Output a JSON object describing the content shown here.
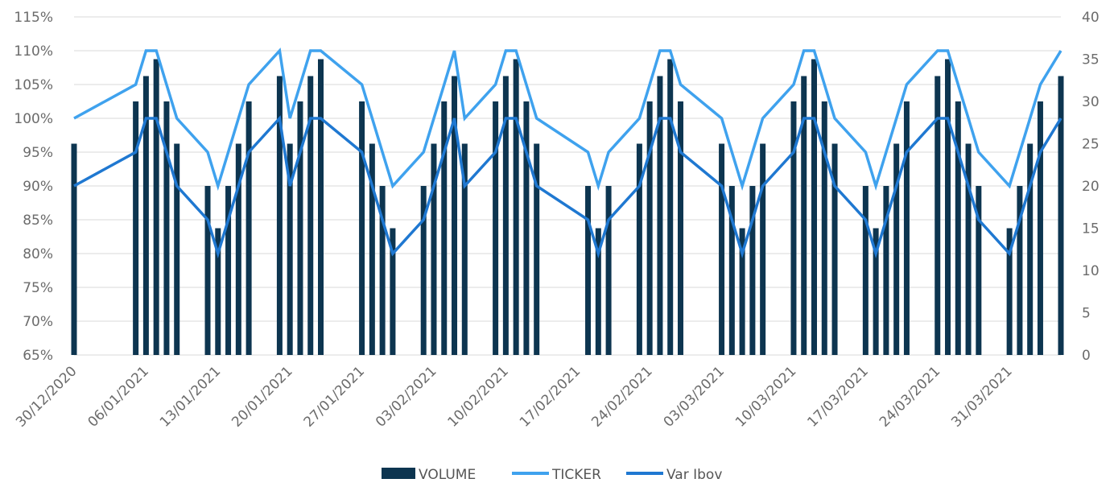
{
  "chart_data": {
    "type": "bar",
    "title": "",
    "xlabel": "",
    "ylabel": "",
    "x": [
      "30/12/2020",
      "31/12/2020",
      "01/01/2021",
      "02/01/2021",
      "03/01/2021",
      "04/01/2021",
      "05/01/2021",
      "06/01/2021",
      "07/01/2021",
      "08/01/2021",
      "09/01/2021",
      "10/01/2021",
      "11/01/2021",
      "12/01/2021",
      "13/01/2021",
      "14/01/2021",
      "15/01/2021",
      "16/01/2021",
      "17/01/2021",
      "18/01/2021",
      "19/01/2021",
      "20/01/2021",
      "21/01/2021",
      "22/01/2021",
      "23/01/2021",
      "24/01/2021",
      "25/01/2021",
      "26/01/2021",
      "27/01/2021",
      "28/01/2021",
      "29/01/2021",
      "30/01/2021",
      "31/01/2021",
      "01/02/2021",
      "02/02/2021",
      "03/02/2021",
      "04/02/2021",
      "05/02/2021",
      "06/02/2021",
      "07/02/2021",
      "08/02/2021",
      "09/02/2021",
      "10/02/2021",
      "11/02/2021",
      "12/02/2021",
      "13/02/2021",
      "14/02/2021",
      "15/02/2021",
      "16/02/2021",
      "17/02/2021",
      "18/02/2021",
      "19/02/2021",
      "20/02/2021",
      "21/02/2021",
      "22/02/2021",
      "23/02/2021",
      "24/02/2021",
      "25/02/2021",
      "26/02/2021",
      "27/02/2021",
      "28/02/2021",
      "01/03/2021",
      "02/03/2021",
      "03/03/2021",
      "04/03/2021",
      "05/03/2021",
      "06/03/2021",
      "07/03/2021",
      "08/03/2021",
      "09/03/2021",
      "10/03/2021",
      "11/03/2021",
      "12/03/2021",
      "13/03/2021",
      "14/03/2021",
      "15/03/2021",
      "16/03/2021",
      "17/03/2021",
      "18/03/2021",
      "19/03/2021",
      "20/03/2021",
      "21/03/2021",
      "22/03/2021",
      "23/03/2021",
      "24/03/2021",
      "25/03/2021",
      "26/03/2021",
      "27/03/2021",
      "28/03/2021",
      "29/03/2021",
      "30/03/2021",
      "31/03/2021",
      "01/04/2021",
      "02/04/2021",
      "03/04/2021",
      "04/04/2021",
      "05/04/2021"
    ],
    "x_tick_labels": [
      "30/12/2020",
      "06/01/2021",
      "13/01/2021",
      "20/01/2021",
      "27/01/2021",
      "03/02/2021",
      "10/02/2021",
      "17/02/2021",
      "24/02/2021",
      "03/03/2021",
      "10/03/2021",
      "17/03/2021",
      "24/03/2021",
      "31/03/2021"
    ],
    "y_left": {
      "range": [
        0.65,
        1.15
      ],
      "ticks": [
        "65%",
        "70%",
        "75%",
        "80%",
        "85%",
        "90%",
        "95%",
        "100%",
        "105%",
        "110%",
        "115%"
      ]
    },
    "y_right": {
      "range": [
        0,
        40
      ],
      "ticks": [
        "0",
        "5",
        "10",
        "15",
        "20",
        "25",
        "30",
        "35",
        "40"
      ]
    },
    "grid": true,
    "legend_position": "bottom",
    "series": [
      {
        "name": "VOLUME",
        "type": "bar",
        "axis": "right",
        "color": "#0d3550",
        "points": [
          {
            "x": "30/12/2020",
            "y": 25
          },
          {
            "x": "05/01/2021",
            "y": 30
          },
          {
            "x": "06/01/2021",
            "y": 33
          },
          {
            "x": "07/01/2021",
            "y": 35
          },
          {
            "x": "08/01/2021",
            "y": 30
          },
          {
            "x": "09/01/2021",
            "y": 25
          },
          {
            "x": "12/01/2021",
            "y": 20
          },
          {
            "x": "13/01/2021",
            "y": 15
          },
          {
            "x": "14/01/2021",
            "y": 20
          },
          {
            "x": "15/01/2021",
            "y": 25
          },
          {
            "x": "16/01/2021",
            "y": 30
          },
          {
            "x": "19/01/2021",
            "y": 33
          },
          {
            "x": "20/01/2021",
            "y": 25
          },
          {
            "x": "21/01/2021",
            "y": 30
          },
          {
            "x": "22/01/2021",
            "y": 33
          },
          {
            "x": "23/01/2021",
            "y": 35
          },
          {
            "x": "27/01/2021",
            "y": 30
          },
          {
            "x": "28/01/2021",
            "y": 25
          },
          {
            "x": "29/01/2021",
            "y": 20
          },
          {
            "x": "30/01/2021",
            "y": 15
          },
          {
            "x": "02/02/2021",
            "y": 20
          },
          {
            "x": "03/02/2021",
            "y": 25
          },
          {
            "x": "04/02/2021",
            "y": 30
          },
          {
            "x": "05/02/2021",
            "y": 33
          },
          {
            "x": "06/02/2021",
            "y": 25
          },
          {
            "x": "09/02/2021",
            "y": 30
          },
          {
            "x": "10/02/2021",
            "y": 33
          },
          {
            "x": "11/02/2021",
            "y": 35
          },
          {
            "x": "12/02/2021",
            "y": 30
          },
          {
            "x": "13/02/2021",
            "y": 25
          },
          {
            "x": "18/02/2021",
            "y": 20
          },
          {
            "x": "19/02/2021",
            "y": 15
          },
          {
            "x": "20/02/2021",
            "y": 20
          },
          {
            "x": "23/02/2021",
            "y": 25
          },
          {
            "x": "24/02/2021",
            "y": 30
          },
          {
            "x": "25/02/2021",
            "y": 33
          },
          {
            "x": "26/02/2021",
            "y": 35
          },
          {
            "x": "27/02/2021",
            "y": 30
          },
          {
            "x": "03/03/2021",
            "y": 25
          },
          {
            "x": "04/03/2021",
            "y": 20
          },
          {
            "x": "05/03/2021",
            "y": 15
          },
          {
            "x": "06/03/2021",
            "y": 20
          },
          {
            "x": "07/03/2021",
            "y": 25
          },
          {
            "x": "10/03/2021",
            "y": 30
          },
          {
            "x": "11/03/2021",
            "y": 33
          },
          {
            "x": "12/03/2021",
            "y": 35
          },
          {
            "x": "13/03/2021",
            "y": 30
          },
          {
            "x": "14/03/2021",
            "y": 25
          },
          {
            "x": "17/03/2021",
            "y": 20
          },
          {
            "x": "18/03/2021",
            "y": 15
          },
          {
            "x": "19/03/2021",
            "y": 20
          },
          {
            "x": "20/03/2021",
            "y": 25
          },
          {
            "x": "21/03/2021",
            "y": 30
          },
          {
            "x": "24/03/2021",
            "y": 33
          },
          {
            "x": "25/03/2021",
            "y": 35
          },
          {
            "x": "26/03/2021",
            "y": 30
          },
          {
            "x": "27/03/2021",
            "y": 25
          },
          {
            "x": "28/03/2021",
            "y": 20
          },
          {
            "x": "31/03/2021",
            "y": 15
          },
          {
            "x": "01/04/2021",
            "y": 20
          },
          {
            "x": "02/04/2021",
            "y": 25
          },
          {
            "x": "03/04/2021",
            "y": 30
          },
          {
            "x": "05/04/2021",
            "y": 33
          }
        ]
      },
      {
        "name": "TICKER",
        "type": "line",
        "axis": "left",
        "color": "#3fa2ee",
        "points": [
          {
            "x": "30/12/2020",
            "y": 1.0
          },
          {
            "x": "05/01/2021",
            "y": 1.05
          },
          {
            "x": "06/01/2021",
            "y": 1.1
          },
          {
            "x": "07/01/2021",
            "y": 1.1
          },
          {
            "x": "08/01/2021",
            "y": 1.05
          },
          {
            "x": "09/01/2021",
            "y": 1.0
          },
          {
            "x": "12/01/2021",
            "y": 0.95
          },
          {
            "x": "13/01/2021",
            "y": 0.9
          },
          {
            "x": "14/01/2021",
            "y": 0.95
          },
          {
            "x": "15/01/2021",
            "y": 1.0
          },
          {
            "x": "16/01/2021",
            "y": 1.05
          },
          {
            "x": "19/01/2021",
            "y": 1.1
          },
          {
            "x": "20/01/2021",
            "y": 1.0
          },
          {
            "x": "21/01/2021",
            "y": 1.05
          },
          {
            "x": "22/01/2021",
            "y": 1.1
          },
          {
            "x": "23/01/2021",
            "y": 1.1
          },
          {
            "x": "27/01/2021",
            "y": 1.05
          },
          {
            "x": "28/01/2021",
            "y": 1.0
          },
          {
            "x": "29/01/2021",
            "y": 0.95
          },
          {
            "x": "30/01/2021",
            "y": 0.9
          },
          {
            "x": "02/02/2021",
            "y": 0.95
          },
          {
            "x": "03/02/2021",
            "y": 1.0
          },
          {
            "x": "04/02/2021",
            "y": 1.05
          },
          {
            "x": "05/02/2021",
            "y": 1.1
          },
          {
            "x": "06/02/2021",
            "y": 1.0
          },
          {
            "x": "09/02/2021",
            "y": 1.05
          },
          {
            "x": "10/02/2021",
            "y": 1.1
          },
          {
            "x": "11/02/2021",
            "y": 1.1
          },
          {
            "x": "12/02/2021",
            "y": 1.05
          },
          {
            "x": "13/02/2021",
            "y": 1.0
          },
          {
            "x": "18/02/2021",
            "y": 0.95
          },
          {
            "x": "19/02/2021",
            "y": 0.9
          },
          {
            "x": "20/02/2021",
            "y": 0.95
          },
          {
            "x": "23/02/2021",
            "y": 1.0
          },
          {
            "x": "24/02/2021",
            "y": 1.05
          },
          {
            "x": "25/02/2021",
            "y": 1.1
          },
          {
            "x": "26/02/2021",
            "y": 1.1
          },
          {
            "x": "27/02/2021",
            "y": 1.05
          },
          {
            "x": "03/03/2021",
            "y": 1.0
          },
          {
            "x": "04/03/2021",
            "y": 0.95
          },
          {
            "x": "05/03/2021",
            "y": 0.9
          },
          {
            "x": "06/03/2021",
            "y": 0.95
          },
          {
            "x": "07/03/2021",
            "y": 1.0
          },
          {
            "x": "10/03/2021",
            "y": 1.05
          },
          {
            "x": "11/03/2021",
            "y": 1.1
          },
          {
            "x": "12/03/2021",
            "y": 1.1
          },
          {
            "x": "13/03/2021",
            "y": 1.05
          },
          {
            "x": "14/03/2021",
            "y": 1.0
          },
          {
            "x": "17/03/2021",
            "y": 0.95
          },
          {
            "x": "18/03/2021",
            "y": 0.9
          },
          {
            "x": "19/03/2021",
            "y": 0.95
          },
          {
            "x": "20/03/2021",
            "y": 1.0
          },
          {
            "x": "21/03/2021",
            "y": 1.05
          },
          {
            "x": "24/03/2021",
            "y": 1.1
          },
          {
            "x": "25/03/2021",
            "y": 1.1
          },
          {
            "x": "26/03/2021",
            "y": 1.05
          },
          {
            "x": "27/03/2021",
            "y": 1.0
          },
          {
            "x": "28/03/2021",
            "y": 0.95
          },
          {
            "x": "31/03/2021",
            "y": 0.9
          },
          {
            "x": "01/04/2021",
            "y": 0.95
          },
          {
            "x": "02/04/2021",
            "y": 1.0
          },
          {
            "x": "03/04/2021",
            "y": 1.05
          },
          {
            "x": "05/04/2021",
            "y": 1.1
          }
        ]
      },
      {
        "name": "Var Ibov",
        "type": "line",
        "axis": "left",
        "color": "#1f78d1",
        "points": [
          {
            "x": "30/12/2020",
            "y": 0.9
          },
          {
            "x": "05/01/2021",
            "y": 0.95
          },
          {
            "x": "06/01/2021",
            "y": 1.0
          },
          {
            "x": "07/01/2021",
            "y": 1.0
          },
          {
            "x": "08/01/2021",
            "y": 0.95
          },
          {
            "x": "09/01/2021",
            "y": 0.9
          },
          {
            "x": "12/01/2021",
            "y": 0.85
          },
          {
            "x": "13/01/2021",
            "y": 0.8
          },
          {
            "x": "14/01/2021",
            "y": 0.85
          },
          {
            "x": "15/01/2021",
            "y": 0.9
          },
          {
            "x": "16/01/2021",
            "y": 0.95
          },
          {
            "x": "19/01/2021",
            "y": 1.0
          },
          {
            "x": "20/01/2021",
            "y": 0.9
          },
          {
            "x": "21/01/2021",
            "y": 0.95
          },
          {
            "x": "22/01/2021",
            "y": 1.0
          },
          {
            "x": "23/01/2021",
            "y": 1.0
          },
          {
            "x": "27/01/2021",
            "y": 0.95
          },
          {
            "x": "28/01/2021",
            "y": 0.9
          },
          {
            "x": "29/01/2021",
            "y": 0.85
          },
          {
            "x": "30/01/2021",
            "y": 0.8
          },
          {
            "x": "02/02/2021",
            "y": 0.85
          },
          {
            "x": "03/02/2021",
            "y": 0.9
          },
          {
            "x": "04/02/2021",
            "y": 0.95
          },
          {
            "x": "05/02/2021",
            "y": 1.0
          },
          {
            "x": "06/02/2021",
            "y": 0.9
          },
          {
            "x": "09/02/2021",
            "y": 0.95
          },
          {
            "x": "10/02/2021",
            "y": 1.0
          },
          {
            "x": "11/02/2021",
            "y": 1.0
          },
          {
            "x": "12/02/2021",
            "y": 0.95
          },
          {
            "x": "13/02/2021",
            "y": 0.9
          },
          {
            "x": "18/02/2021",
            "y": 0.85
          },
          {
            "x": "19/02/2021",
            "y": 0.8
          },
          {
            "x": "20/02/2021",
            "y": 0.85
          },
          {
            "x": "23/02/2021",
            "y": 0.9
          },
          {
            "x": "24/02/2021",
            "y": 0.95
          },
          {
            "x": "25/02/2021",
            "y": 1.0
          },
          {
            "x": "26/02/2021",
            "y": 1.0
          },
          {
            "x": "27/02/2021",
            "y": 0.95
          },
          {
            "x": "03/03/2021",
            "y": 0.9
          },
          {
            "x": "04/03/2021",
            "y": 0.85
          },
          {
            "x": "05/03/2021",
            "y": 0.8
          },
          {
            "x": "06/03/2021",
            "y": 0.85
          },
          {
            "x": "07/03/2021",
            "y": 0.9
          },
          {
            "x": "10/03/2021",
            "y": 0.95
          },
          {
            "x": "11/03/2021",
            "y": 1.0
          },
          {
            "x": "12/03/2021",
            "y": 1.0
          },
          {
            "x": "13/03/2021",
            "y": 0.95
          },
          {
            "x": "14/03/2021",
            "y": 0.9
          },
          {
            "x": "17/03/2021",
            "y": 0.85
          },
          {
            "x": "18/03/2021",
            "y": 0.8
          },
          {
            "x": "19/03/2021",
            "y": 0.85
          },
          {
            "x": "20/03/2021",
            "y": 0.9
          },
          {
            "x": "21/03/2021",
            "y": 0.95
          },
          {
            "x": "24/03/2021",
            "y": 1.0
          },
          {
            "x": "25/03/2021",
            "y": 1.0
          },
          {
            "x": "26/03/2021",
            "y": 0.95
          },
          {
            "x": "27/03/2021",
            "y": 0.9
          },
          {
            "x": "28/03/2021",
            "y": 0.85
          },
          {
            "x": "31/03/2021",
            "y": 0.8
          },
          {
            "x": "01/04/2021",
            "y": 0.85
          },
          {
            "x": "02/04/2021",
            "y": 0.9
          },
          {
            "x": "03/04/2021",
            "y": 0.95
          },
          {
            "x": "05/04/2021",
            "y": 1.0
          }
        ]
      }
    ],
    "legend": [
      "VOLUME",
      "TICKER",
      "Var Ibov"
    ],
    "colors": {
      "grid": "#d9d9d9",
      "tick_text": "#6b6b6b"
    }
  }
}
